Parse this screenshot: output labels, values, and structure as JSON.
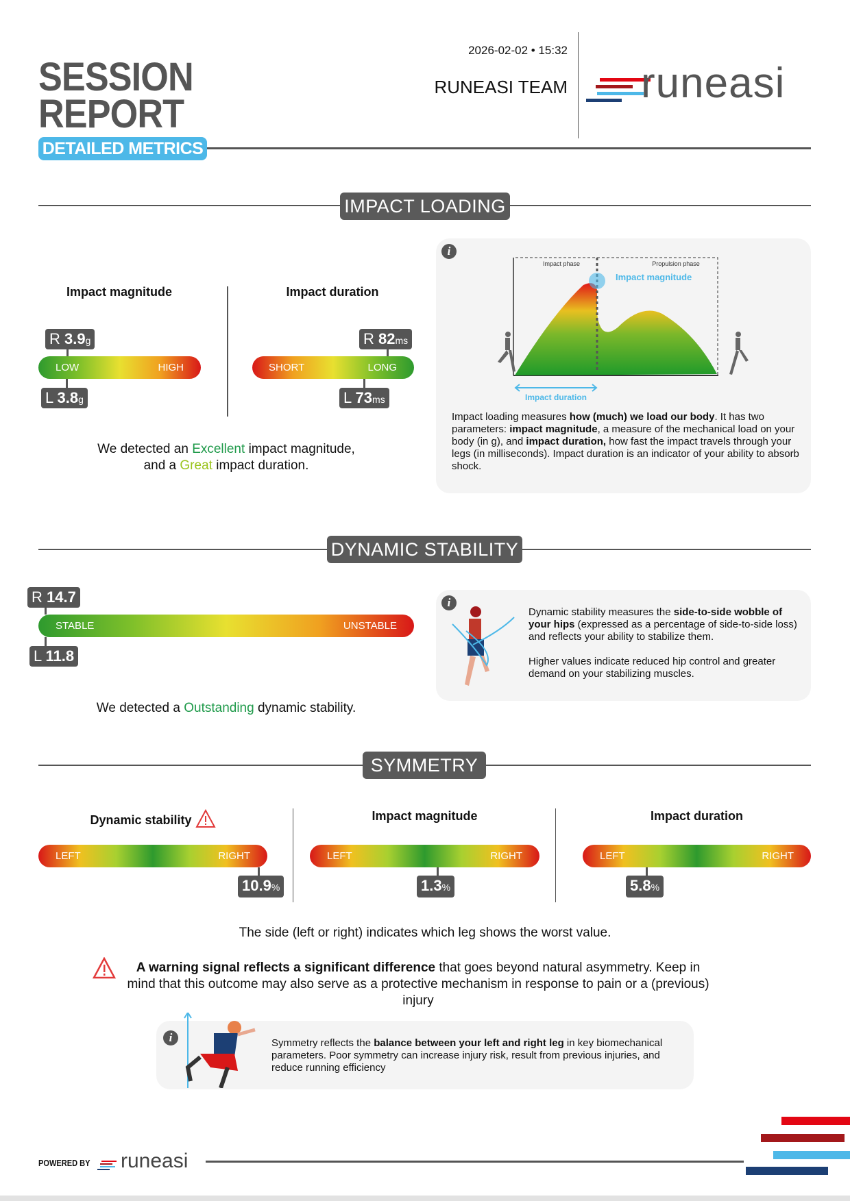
{
  "header": {
    "title_line1": "SESSION",
    "title_line2": "REPORT",
    "badge": "DETAILED METRICS",
    "datetime": "2026-02-02 • 15:32",
    "team": "RUNEASI TEAM",
    "logo_text": "runeasi"
  },
  "colors": {
    "accent_blue": "#4db8e8",
    "dark_gray": "#555555",
    "logo_red": "#e30613",
    "logo_dark_red": "#a3181b",
    "logo_light_blue": "#4db8e8",
    "logo_navy": "#1c3f74",
    "excellent": "#1f9a4a",
    "great": "#9ac31c",
    "warning": "#e23a3a"
  },
  "impact_loading": {
    "title": "IMPACT LOADING",
    "magnitude": {
      "label": "Impact magnitude",
      "low": "LOW",
      "high": "HIGH",
      "right": {
        "side": "R",
        "value": "3.9",
        "unit": "g",
        "scale_position": 0.18
      },
      "left": {
        "side": "L",
        "value": "3.8",
        "unit": "g",
        "scale_position": 0.15
      }
    },
    "duration": {
      "label": "Impact duration",
      "short": "SHORT",
      "long": "LONG",
      "right": {
        "side": "R",
        "value": "82",
        "unit": "ms",
        "scale_position": 0.84
      },
      "left": {
        "side": "L",
        "value": "73",
        "unit": "ms",
        "scale_position": 0.69
      }
    },
    "sentence": {
      "p1": "We detected an ",
      "rating1": "Excellent",
      "p2": " impact magnitude,",
      "p3": "and a ",
      "rating2": "Great",
      "p4": " impact duration."
    },
    "info": {
      "diagram": {
        "impact_phase": "Impact phase",
        "propulsion_phase": "Propulsion phase",
        "impact_magnitude": "Impact magnitude",
        "impact_duration": "Impact duration"
      },
      "t1": "Impact loading measures ",
      "b1": "how (much) we load our body",
      "t2": ". It has two parameters: ",
      "b2": "impact magnitude",
      "t3": ", a measure of the mechanical load on your body (in g), and ",
      "b3": "impact duration,",
      "t4": " how fast the impact travels through your legs (in milliseconds). Impact duration is an indicator of your ability to absorb shock."
    }
  },
  "dynamic_stability": {
    "title": "DYNAMIC STABILITY",
    "stable": "STABLE",
    "unstable": "UNSTABLE",
    "right": {
      "side": "R",
      "value": "14.7",
      "scale_position": 0.02
    },
    "left": {
      "side": "L",
      "value": "11.8",
      "scale_position": 0.02
    },
    "sentence": {
      "p1": "We detected a ",
      "rating": "Outstanding",
      "p2": " dynamic stability."
    },
    "info": {
      "t1": "Dynamic stability measures the ",
      "b1": "side-to-side wobble of your hips",
      "t2": " (expressed as a percentage of side-to-side loss) and reflects your ability to stabilize them.",
      "t3": "Higher values indicate reduced hip control and greater demand on your stabilizing muscles."
    }
  },
  "symmetry": {
    "title": "SYMMETRY",
    "columns": [
      {
        "label": "Dynamic stability",
        "warning": true,
        "left": "LEFT",
        "right": "RIGHT",
        "value": "10.9",
        "unit": "%",
        "scale_position": 0.96
      },
      {
        "label": "Impact magnitude",
        "warning": false,
        "left": "LEFT",
        "right": "RIGHT",
        "value": "1.3",
        "unit": "%",
        "scale_position": 0.555
      },
      {
        "label": "Impact duration",
        "warning": false,
        "left": "LEFT",
        "right": "RIGHT",
        "value": "5.8",
        "unit": "%",
        "scale_position": 0.28
      }
    ],
    "side_note": "The side (left or right) indicates which leg shows the worst value.",
    "warning": {
      "bold": "A warning signal reflects a significant difference",
      "text": " that goes beyond natural asymmetry. Keep in mind that this outcome may also serve as a protective mechanism in response to pain or a (previous) injury"
    },
    "info": {
      "t1": "Symmetry reflects the ",
      "b1": "balance between your left and right leg",
      "t2": " in key biomechanical parameters. Poor symmetry can increase injury risk, result from previous injuries, and reduce running efficiency"
    }
  },
  "footer": {
    "powered_by": "POWERED BY",
    "logo_text": "runeasi"
  }
}
